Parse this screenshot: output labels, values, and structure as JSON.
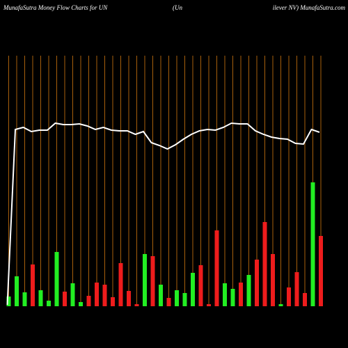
{
  "chart_data": {
    "type": "money-flow",
    "title_left": "MunafaSutra  Money Flow  Charts for UN",
    "title_middle": "(Un",
    "title_right": "ilever NV) MunafaSutra.com",
    "ylim": [
      0,
      360
    ],
    "series": [
      {
        "name": "Flow",
        "colors": [
          "#22ee22",
          "#22ee22",
          "#22ee22",
          "#ee1c1c",
          "#22ee22",
          "#22ee22",
          "#22ee22",
          "#ee1c1c",
          "#22ee22",
          "#22ee22",
          "#ee1c1c",
          "#ee1c1c",
          "#ee1c1c",
          "#ee1c1c",
          "#ee1c1c",
          "#ee1c1c",
          "#ee1c1c",
          "#22ee22",
          "#ee1c1c",
          "#22ee22",
          "#ee1c1c",
          "#22ee22",
          "#22ee22",
          "#22ee22",
          "#ee1c1c",
          "#ee1c1c",
          "#ee1c1c",
          "#22ee22",
          "#22ee22",
          "#ee1c1c",
          "#22ee22",
          "#ee1c1c",
          "#ee1c1c",
          "#ee1c1c",
          "#22ee22",
          "#ee1c1c",
          "#ee1c1c",
          "#ee1c1c",
          "#22ee22",
          "#ee1c1c"
        ],
        "values": [
          14,
          43,
          20,
          60,
          23,
          8,
          78,
          21,
          33,
          6,
          15,
          34,
          31,
          13,
          62,
          22,
          3,
          75,
          72,
          31,
          12,
          23,
          19,
          48,
          59,
          3,
          109,
          33,
          25,
          34,
          45,
          67,
          121,
          75,
          3,
          27,
          49,
          19,
          178,
          101
        ]
      },
      {
        "name": "Price",
        "color": "#ffffff",
        "values": [
          2,
          254,
          257,
          251,
          253,
          253,
          263,
          261,
          261,
          262,
          259,
          254,
          257,
          253,
          252,
          252,
          247,
          251,
          235,
          231,
          226,
          232,
          240,
          247,
          252,
          254,
          253,
          257,
          263,
          262,
          262,
          252,
          247,
          243,
          241,
          240,
          234,
          233,
          254,
          250
        ]
      }
    ],
    "gridline_color": "#a8600c"
  }
}
